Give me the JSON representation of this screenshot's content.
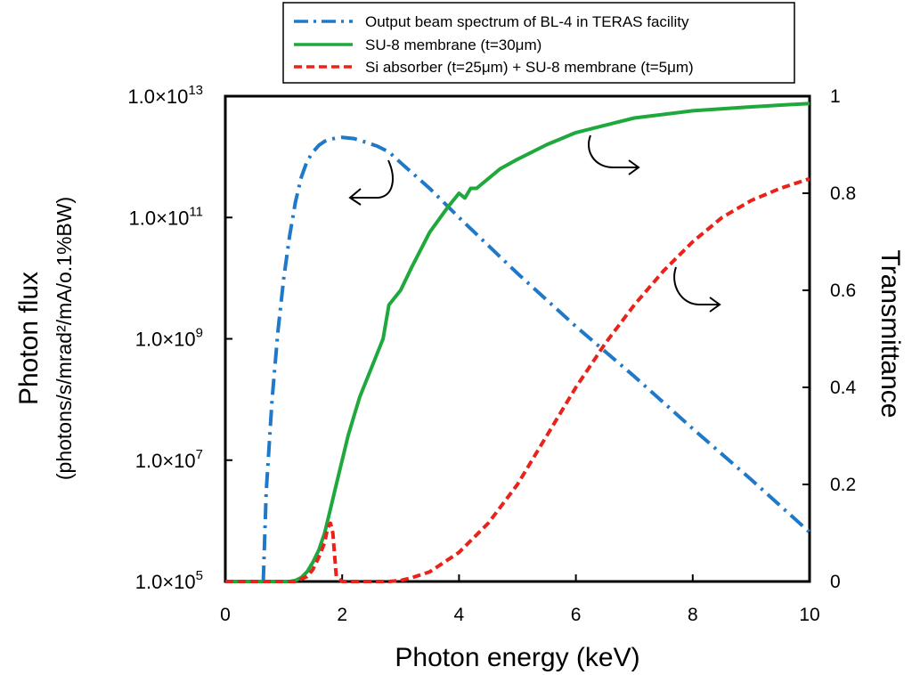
{
  "chart_data": {
    "type": "line",
    "xlabel": "Photon energy (keV)",
    "ylabel": "Photon flux",
    "ylabel_sub": "(photons/s/mrad²/mA/o.1%BW)",
    "y2label": "Transmittance",
    "xlim": [
      0,
      10
    ],
    "ylim": [
      100000,
      10000000000000
    ],
    "y_scale": "log",
    "y2lim": [
      0,
      1
    ],
    "x_ticks": [
      "0",
      "2",
      "4",
      "6",
      "8",
      "10"
    ],
    "y_ticks": [
      {
        "mant": "1.0×10",
        "exp": "13",
        "value": 10000000000000.0
      },
      {
        "mant": "1.0×10",
        "exp": "11",
        "value": 100000000000.0
      },
      {
        "mant": "1.0×10",
        "exp": "9",
        "value": 1000000000.0
      },
      {
        "mant": "1.0×10",
        "exp": "7",
        "value": 10000000.0
      },
      {
        "mant": "1.0×10",
        "exp": "5",
        "value": 100000.0
      }
    ],
    "y2_ticks": [
      "1",
      "0.8",
      "0.6",
      "0.4",
      "0.2",
      "0"
    ],
    "grid": false,
    "legend_position": "top",
    "series": [
      {
        "name": "Output beam spectrum of BL-4 in TERAS facility",
        "axis": "left",
        "color": "#1F78C8",
        "style": "dash-dot",
        "x": [
          0.65,
          0.7,
          0.8,
          0.9,
          1.0,
          1.1,
          1.2,
          1.3,
          1.4,
          1.5,
          1.6,
          1.7,
          1.8,
          1.9,
          2.0,
          2.2,
          2.4,
          2.6,
          2.8,
          3.0,
          3.5,
          4.0,
          5.0,
          6.0,
          7.0,
          8.0,
          9.0,
          10.0
        ],
        "y": [
          100000,
          3000000.0,
          100000000.0,
          1300000000.0,
          10000000000.0,
          50000000000.0,
          180000000000.0,
          460000000000.0,
          850000000000.0,
          1200000000000.0,
          1550000000000.0,
          1800000000000.0,
          1950000000000.0,
          2050000000000.0,
          2100000000000.0,
          2000000000000.0,
          1750000000000.0,
          1500000000000.0,
          1200000000000.0,
          800000000000.0,
          300000000000.0,
          100000000000.0,
          12000000000.0,
          1600000000.0,
          240000000.0,
          33000000.0,
          4800000.0,
          650000.0
        ]
      },
      {
        "name": "SU-8 membrane (t=30μm)",
        "axis": "right",
        "color": "#1FA83C",
        "style": "solid",
        "x": [
          0,
          1.1,
          1.2,
          1.3,
          1.4,
          1.5,
          1.6,
          1.7,
          1.8,
          1.9,
          2.0,
          2.1,
          2.2,
          2.3,
          2.5,
          2.7,
          2.8,
          3.0,
          3.2,
          3.5,
          3.8,
          4.0,
          4.1,
          4.2,
          4.3,
          4.5,
          4.7,
          5.0,
          5.5,
          6.0,
          6.5,
          7.0,
          8.0,
          9.0,
          10.0
        ],
        "y": [
          0,
          0,
          0.002,
          0.008,
          0.02,
          0.04,
          0.065,
          0.1,
          0.15,
          0.2,
          0.25,
          0.3,
          0.34,
          0.38,
          0.44,
          0.5,
          0.57,
          0.6,
          0.65,
          0.72,
          0.77,
          0.8,
          0.79,
          0.81,
          0.81,
          0.83,
          0.85,
          0.87,
          0.9,
          0.925,
          0.94,
          0.955,
          0.97,
          0.978,
          0.985
        ]
      },
      {
        "name": "Si absorber (t=25μm) + SU-8 membrane (t=5μm)",
        "axis": "right",
        "color": "#E8231C",
        "style": "dashed",
        "x": [
          0,
          1.2,
          1.4,
          1.5,
          1.6,
          1.7,
          1.75,
          1.8,
          1.84,
          1.9,
          2.0,
          2.5,
          2.8,
          3.0,
          3.2,
          3.5,
          4.0,
          4.5,
          5.0,
          5.5,
          6.0,
          6.5,
          7.0,
          7.5,
          8.0,
          8.5,
          9.0,
          9.5,
          10.0
        ],
        "y": [
          0,
          0,
          0.01,
          0.025,
          0.05,
          0.08,
          0.11,
          0.12,
          0.1,
          0.01,
          0,
          0,
          0,
          0.002,
          0.008,
          0.02,
          0.06,
          0.12,
          0.2,
          0.3,
          0.4,
          0.49,
          0.57,
          0.64,
          0.7,
          0.75,
          0.785,
          0.81,
          0.83
        ]
      }
    ]
  }
}
